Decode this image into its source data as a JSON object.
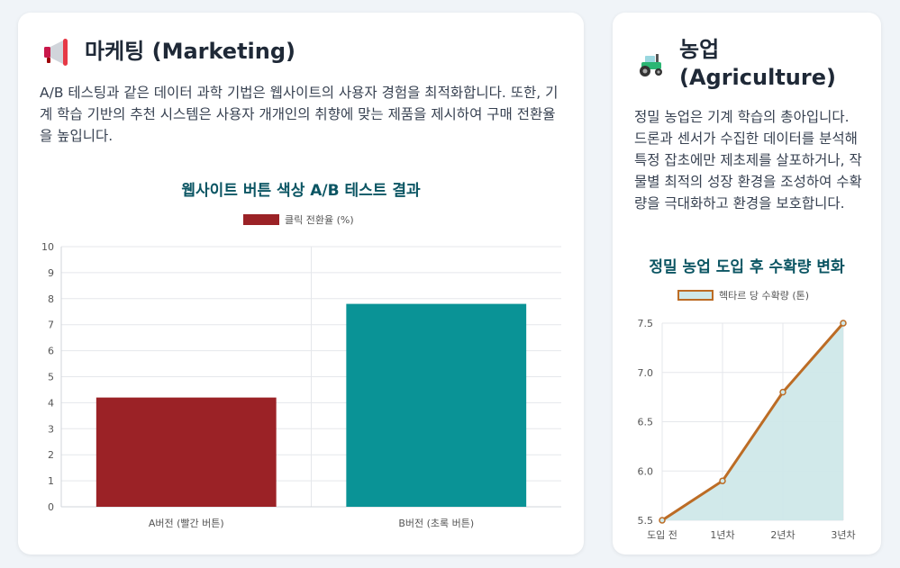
{
  "marketing": {
    "icon": "megaphone-icon",
    "title": "마케팅 (Marketing)",
    "description": "A/B 테스팅과 같은 데이터 과학 기법은 웹사이트의 사용자 경험을 최적화합니다. 또한, 기계 학습 기반의 추천 시스템은 사용자 개개인의 취향에 맞는 제품을 제시하여 구매 전환율을 높입니다.",
    "chart_title": "웹사이트 버튼 색상 A/B 테스트 결과"
  },
  "agriculture": {
    "icon": "tractor-icon",
    "title_line1": "농업",
    "title_line2": "(Agriculture)",
    "description": "정밀 농업은 기계 학습의 총아입니다. 드론과 센서가 수집한 데이터를 분석해 특정 잡초에만 제초제를 살포하거나, 작물별 최적의 성장 환경을 조성하여 수확량을 극대화하고 환경을 보호합니다.",
    "chart_title": "정밀 농업 도입 후 수확량 변화"
  },
  "chart_data": [
    {
      "type": "bar",
      "title": "웹사이트 버튼 색상 A/B 테스트 결과",
      "categories": [
        "A버전 (빨간 버튼)",
        "B버전 (초록 버튼)"
      ],
      "series": [
        {
          "name": "클릭 전환율 (%)",
          "values": [
            4.2,
            7.8
          ]
        }
      ],
      "colors": [
        "#9b2226",
        "#0a9396"
      ],
      "ylim": [
        0,
        10
      ],
      "yticks": [
        "0",
        "1",
        "2",
        "3",
        "4",
        "5",
        "6",
        "7",
        "8",
        "9",
        "10"
      ],
      "grid": true,
      "legend": "top"
    },
    {
      "type": "area",
      "title": "정밀 농업 도입 후 수확량 변화",
      "categories": [
        "도입 전",
        "1년차",
        "2년차",
        "3년차"
      ],
      "series": [
        {
          "name": "헥타르 당 수확량 (톤)",
          "values": [
            5.5,
            5.9,
            6.8,
            7.5
          ]
        }
      ],
      "line_color": "#bc6c25",
      "fill_color": "#cfe8e9",
      "ylim": [
        5.5,
        7.5
      ],
      "yticks": [
        "5.5",
        "6.0",
        "6.5",
        "7.0",
        "7.5"
      ],
      "grid": true,
      "legend": "top"
    }
  ]
}
